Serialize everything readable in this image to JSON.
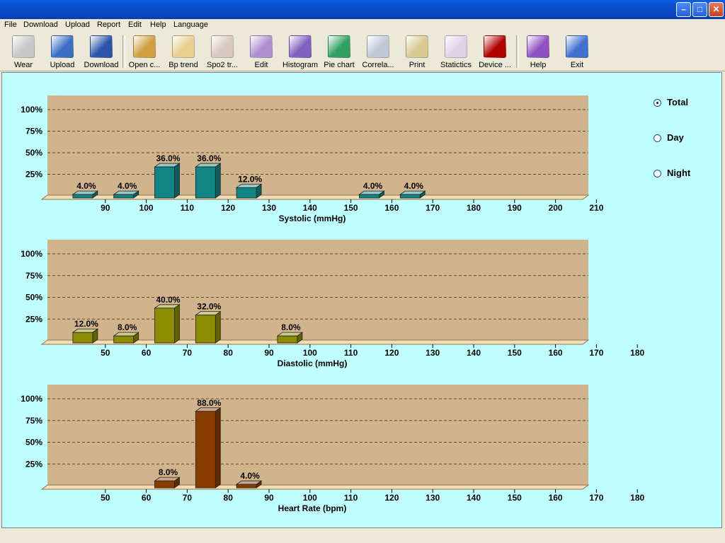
{
  "menu": [
    "File",
    "Download",
    "Upload",
    "Report",
    "Edit",
    "Help",
    "Language"
  ],
  "toolbar": [
    {
      "label": "Wear",
      "icon": "wear-icon",
      "color": "#c8c8c8"
    },
    {
      "label": "Upload",
      "icon": "upload-person-icon",
      "color": "#3a6fc4"
    },
    {
      "label": "Download",
      "icon": "download-book-icon",
      "color": "#2a55a8"
    },
    {
      "label": "Open c...",
      "icon": "patients-group-icon",
      "color": "#d0a040"
    },
    {
      "label": "Bp trend",
      "icon": "bp-trend-icon",
      "color": "#e8d090"
    },
    {
      "label": "Spo2 tr...",
      "icon": "spo2-trend-icon",
      "color": "#d8c8c0"
    },
    {
      "label": "Edit",
      "icon": "edit-calendar-icon",
      "color": "#b090d0"
    },
    {
      "label": "Histogram",
      "icon": "histogram-icon",
      "color": "#8060c0"
    },
    {
      "label": "Pie chart",
      "icon": "pie-chart-icon",
      "color": "#30a060"
    },
    {
      "label": "Correla...",
      "icon": "correlation-icon",
      "color": "#c0c8d8"
    },
    {
      "label": "Print",
      "icon": "printer-icon",
      "color": "#d8c890"
    },
    {
      "label": "Statictics",
      "icon": "sigma-icon",
      "color": "#e0d0e8"
    },
    {
      "label": "Device ...",
      "icon": "info-icon",
      "color": "#b00000"
    },
    {
      "label": "Help",
      "icon": "help-book-icon",
      "color": "#9050c0"
    },
    {
      "label": "Exit",
      "icon": "exit-runner-icon",
      "color": "#4070d0"
    }
  ],
  "radios": [
    {
      "label": "Total",
      "checked": true
    },
    {
      "label": "Day",
      "checked": false
    },
    {
      "label": "Night",
      "checked": false
    }
  ],
  "chart_data": [
    {
      "type": "bar",
      "xlabel": "Systolic (mmHg)",
      "x_ticks": [
        90,
        100,
        110,
        120,
        130,
        140,
        150,
        160,
        170,
        180,
        190,
        200,
        210
      ],
      "y_ticks": [
        "100%",
        "75%",
        "50%",
        "25%"
      ],
      "ylim": [
        0,
        100
      ],
      "grid": true,
      "color": "#118585",
      "bars": [
        {
          "x": 85,
          "value": 4.0,
          "label": "4.0%"
        },
        {
          "x": 95,
          "value": 4.0,
          "label": "4.0%"
        },
        {
          "x": 105,
          "value": 36.0,
          "label": "36.0%"
        },
        {
          "x": 115,
          "value": 36.0,
          "label": "36.0%"
        },
        {
          "x": 125,
          "value": 12.0,
          "label": "12.0%"
        },
        {
          "x": 155,
          "value": 4.0,
          "label": "4.0%"
        },
        {
          "x": 165,
          "value": 4.0,
          "label": "4.0%"
        }
      ]
    },
    {
      "type": "bar",
      "xlabel": "Diastolic (mmHg)",
      "x_ticks": [
        50,
        60,
        70,
        80,
        90,
        100,
        110,
        120,
        130,
        140,
        150,
        160,
        170,
        180
      ],
      "y_ticks": [
        "100%",
        "75%",
        "50%",
        "25%"
      ],
      "ylim": [
        0,
        100
      ],
      "grid": true,
      "color": "#8c8c00",
      "bars": [
        {
          "x": 45,
          "value": 12.0,
          "label": "12.0%"
        },
        {
          "x": 55,
          "value": 8.0,
          "label": "8.0%"
        },
        {
          "x": 65,
          "value": 40.0,
          "label": "40.0%"
        },
        {
          "x": 75,
          "value": 32.0,
          "label": "32.0%"
        },
        {
          "x": 95,
          "value": 8.0,
          "label": "8.0%"
        }
      ]
    },
    {
      "type": "bar",
      "xlabel": "Heart Rate (bpm)",
      "x_ticks": [
        50,
        60,
        70,
        80,
        90,
        100,
        110,
        120,
        130,
        140,
        150,
        160,
        170,
        180
      ],
      "y_ticks": [
        "100%",
        "75%",
        "50%",
        "25%"
      ],
      "ylim": [
        0,
        100
      ],
      "grid": true,
      "color": "#8a3c00",
      "bars": [
        {
          "x": 65,
          "value": 8.0,
          "label": "8.0%"
        },
        {
          "x": 75,
          "value": 88.0,
          "label": "88.0%"
        },
        {
          "x": 85,
          "value": 4.0,
          "label": "4.0%"
        }
      ]
    }
  ]
}
